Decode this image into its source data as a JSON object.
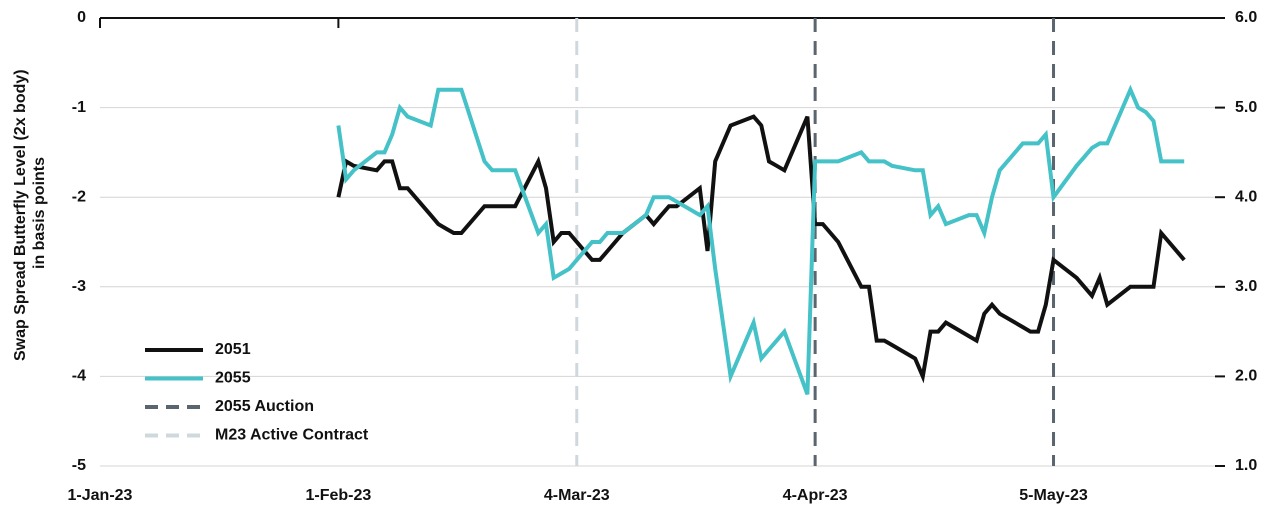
{
  "chart_data": {
    "type": "line",
    "ylabel": [
      "Swap Spread Butterfly Level (2x body)",
      "in basis points"
    ],
    "x": [
      "2023-02-01",
      "2023-02-02",
      "2023-02-03",
      "2023-02-06",
      "2023-02-07",
      "2023-02-08",
      "2023-02-09",
      "2023-02-10",
      "2023-02-13",
      "2023-02-14",
      "2023-02-15",
      "2023-02-16",
      "2023-02-17",
      "2023-02-20",
      "2023-02-21",
      "2023-02-22",
      "2023-02-23",
      "2023-02-24",
      "2023-02-27",
      "2023-02-28",
      "2023-03-01",
      "2023-03-02",
      "2023-03-03",
      "2023-03-06",
      "2023-03-07",
      "2023-03-08",
      "2023-03-09",
      "2023-03-10",
      "2023-03-13",
      "2023-03-14",
      "2023-03-15",
      "2023-03-16",
      "2023-03-17",
      "2023-03-20",
      "2023-03-21",
      "2023-03-22",
      "2023-03-23",
      "2023-03-24",
      "2023-03-27",
      "2023-03-28",
      "2023-03-29",
      "2023-03-30",
      "2023-03-31",
      "2023-04-03",
      "2023-04-04",
      "2023-04-05",
      "2023-04-06",
      "2023-04-07",
      "2023-04-10",
      "2023-04-11",
      "2023-04-12",
      "2023-04-13",
      "2023-04-14",
      "2023-04-17",
      "2023-04-18",
      "2023-04-19",
      "2023-04-20",
      "2023-04-21",
      "2023-04-24",
      "2023-04-25",
      "2023-04-26",
      "2023-04-27",
      "2023-04-28",
      "2023-05-01",
      "2023-05-02",
      "2023-05-03",
      "2023-05-04",
      "2023-05-05",
      "2023-05-08",
      "2023-05-09",
      "2023-05-10",
      "2023-05-11",
      "2023-05-12",
      "2023-05-15",
      "2023-05-16",
      "2023-05-17",
      "2023-05-18",
      "2023-05-19",
      "2023-05-22"
    ],
    "series": [
      {
        "name": "2051",
        "color": "#111111",
        "axis": "y",
        "values": [
          -2.0,
          -1.6,
          -1.65,
          -1.7,
          -1.6,
          -1.6,
          -1.9,
          -1.9,
          -2.2,
          -2.3,
          -2.35,
          -2.4,
          -2.4,
          -2.1,
          -2.1,
          -2.1,
          -2.1,
          -2.1,
          -1.6,
          -1.9,
          -2.5,
          -2.4,
          -2.4,
          -2.7,
          -2.7,
          -2.6,
          -2.5,
          -2.4,
          -2.2,
          -2.3,
          -2.2,
          -2.1,
          -2.1,
          -1.9,
          -2.6,
          -1.6,
          -1.4,
          -1.2,
          -1.1,
          -1.2,
          -1.6,
          -1.65,
          -1.7,
          -1.1,
          -2.3,
          -2.3,
          -2.4,
          -2.5,
          -3.0,
          -3.0,
          -3.6,
          -3.6,
          -3.65,
          -3.8,
          -4.0,
          -3.5,
          -3.5,
          -3.4,
          -3.55,
          -3.6,
          -3.3,
          -3.2,
          -3.3,
          -3.45,
          -3.5,
          -3.5,
          -3.2,
          -2.7,
          -2.9,
          -3.0,
          -3.1,
          -2.9,
          -3.2,
          -3.0,
          -3.0,
          -3.0,
          -3.0,
          -2.4,
          -2.7
        ]
      },
      {
        "name": "2055",
        "color": "#45c1c8",
        "axis": "y2",
        "values": [
          4.8,
          4.2,
          4.3,
          4.5,
          4.5,
          4.7,
          5.0,
          4.9,
          4.8,
          5.2,
          5.2,
          5.2,
          5.2,
          4.4,
          4.3,
          4.3,
          4.3,
          4.3,
          3.6,
          3.7,
          3.1,
          3.15,
          3.2,
          3.5,
          3.5,
          3.6,
          3.6,
          3.6,
          3.8,
          4.0,
          4.0,
          4.0,
          3.95,
          3.8,
          3.9,
          3.2,
          2.6,
          2.0,
          2.6,
          2.2,
          2.3,
          2.4,
          2.5,
          1.8,
          4.4,
          4.4,
          4.4,
          4.4,
          4.5,
          4.4,
          4.4,
          4.4,
          4.35,
          4.3,
          4.3,
          3.8,
          3.9,
          3.7,
          3.8,
          3.8,
          3.6,
          4.0,
          4.3,
          4.6,
          4.6,
          4.6,
          4.7,
          4.0,
          4.35,
          4.45,
          4.55,
          4.6,
          4.6,
          5.2,
          5.0,
          4.95,
          4.85,
          4.4,
          4.4
        ]
      }
    ],
    "vlines": [
      {
        "name": "2055 Auction",
        "color": "#5a6570",
        "x": [
          "2023-04-04",
          "2023-05-05"
        ]
      },
      {
        "name": "M23 Active Contract",
        "color": "#cfd8dd",
        "x": [
          "2023-03-04"
        ]
      }
    ],
    "xlim": [
      "2023-01-01",
      "2023-05-26"
    ],
    "xticks": [
      {
        "value": "2023-01-01",
        "label": "1-Jan-23"
      },
      {
        "value": "2023-02-01",
        "label": "1-Feb-23"
      },
      {
        "value": "2023-03-04",
        "label": "4-Mar-23"
      },
      {
        "value": "2023-04-04",
        "label": "4-Apr-23"
      },
      {
        "value": "2023-05-05",
        "label": "5-May-23"
      }
    ],
    "ylim": [
      -5,
      0
    ],
    "yticks": [
      0,
      -1,
      -2,
      -3,
      -4,
      -5
    ],
    "y2lim": [
      1,
      6
    ],
    "y2ticks": [
      {
        "value": 6,
        "label": "6.0"
      },
      {
        "value": 5,
        "label": "5.0"
      },
      {
        "value": 4,
        "label": "4.0"
      },
      {
        "value": 3,
        "label": "3.0"
      },
      {
        "value": 2,
        "label": "2.0"
      },
      {
        "value": 1,
        "label": "1.0"
      }
    ],
    "grid": true,
    "legend": "lower-left"
  }
}
